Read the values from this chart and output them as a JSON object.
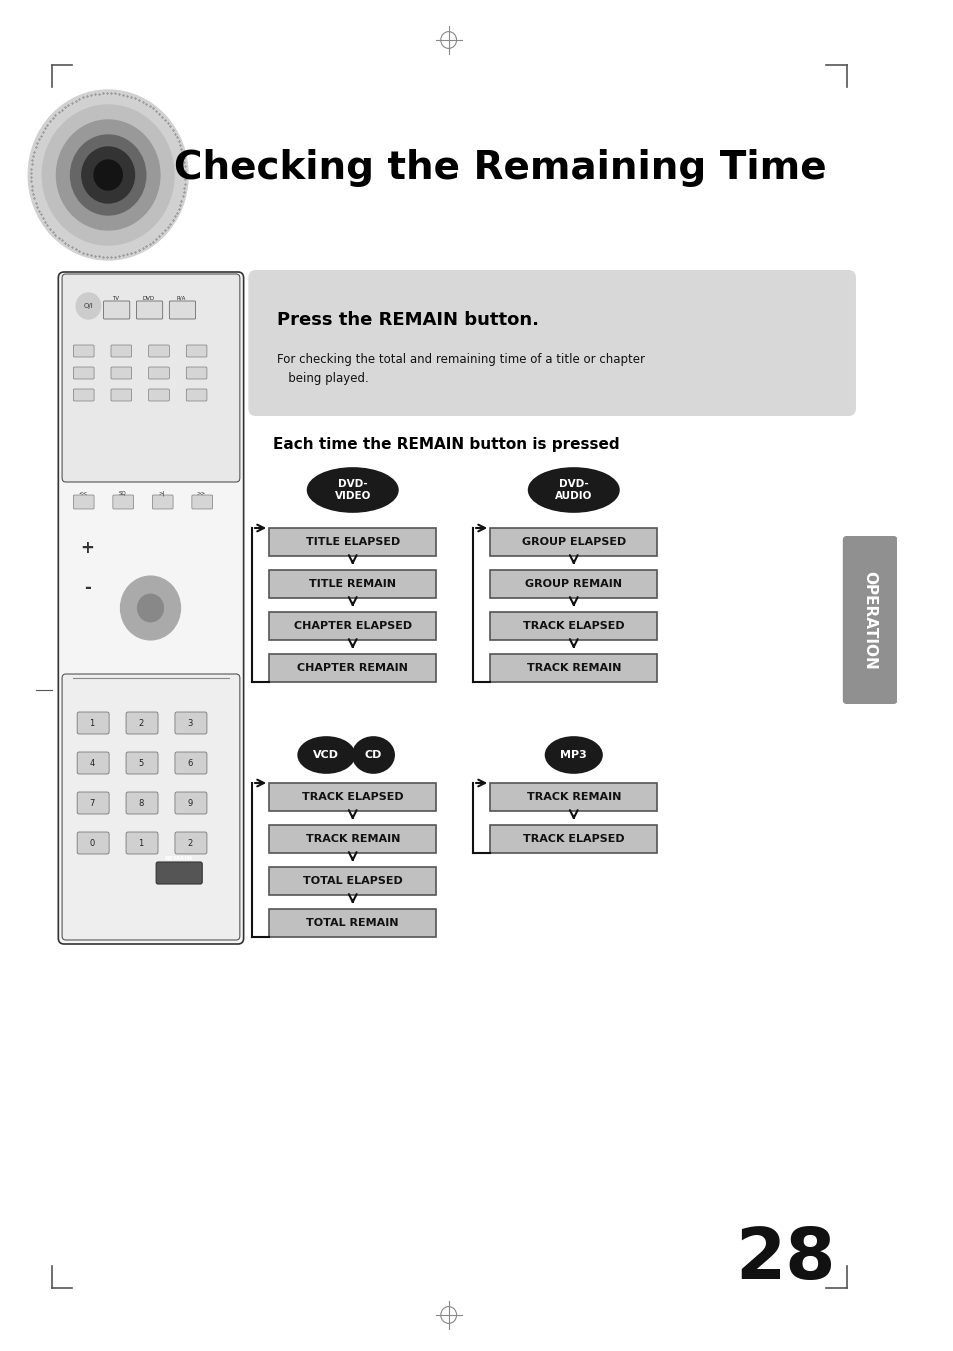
{
  "title": "Checking the Remaining Time",
  "page_number": "28",
  "bg_color": "#ffffff",
  "press_title": "Press the REMAIN button.",
  "press_body": "For checking the total and remaining time of a title or chapter\n   being played.",
  "section_title": "Each time the REMAIN button is pressed",
  "dvd_video_items": [
    "TITLE ELAPSED",
    "TITLE REMAIN",
    "CHAPTER ELAPSED",
    "CHAPTER REMAIN"
  ],
  "dvd_audio_items": [
    "GROUP ELAPSED",
    "GROUP REMAIN",
    "TRACK ELAPSED",
    "TRACK REMAIN"
  ],
  "vcd_cd_items": [
    "TRACK ELAPSED",
    "TRACK REMAIN",
    "TOTAL ELAPSED",
    "TOTAL REMAIN"
  ],
  "mp3_items": [
    "TRACK REMAIN",
    "TRACK ELAPSED"
  ],
  "operation_label": "OPERATION"
}
